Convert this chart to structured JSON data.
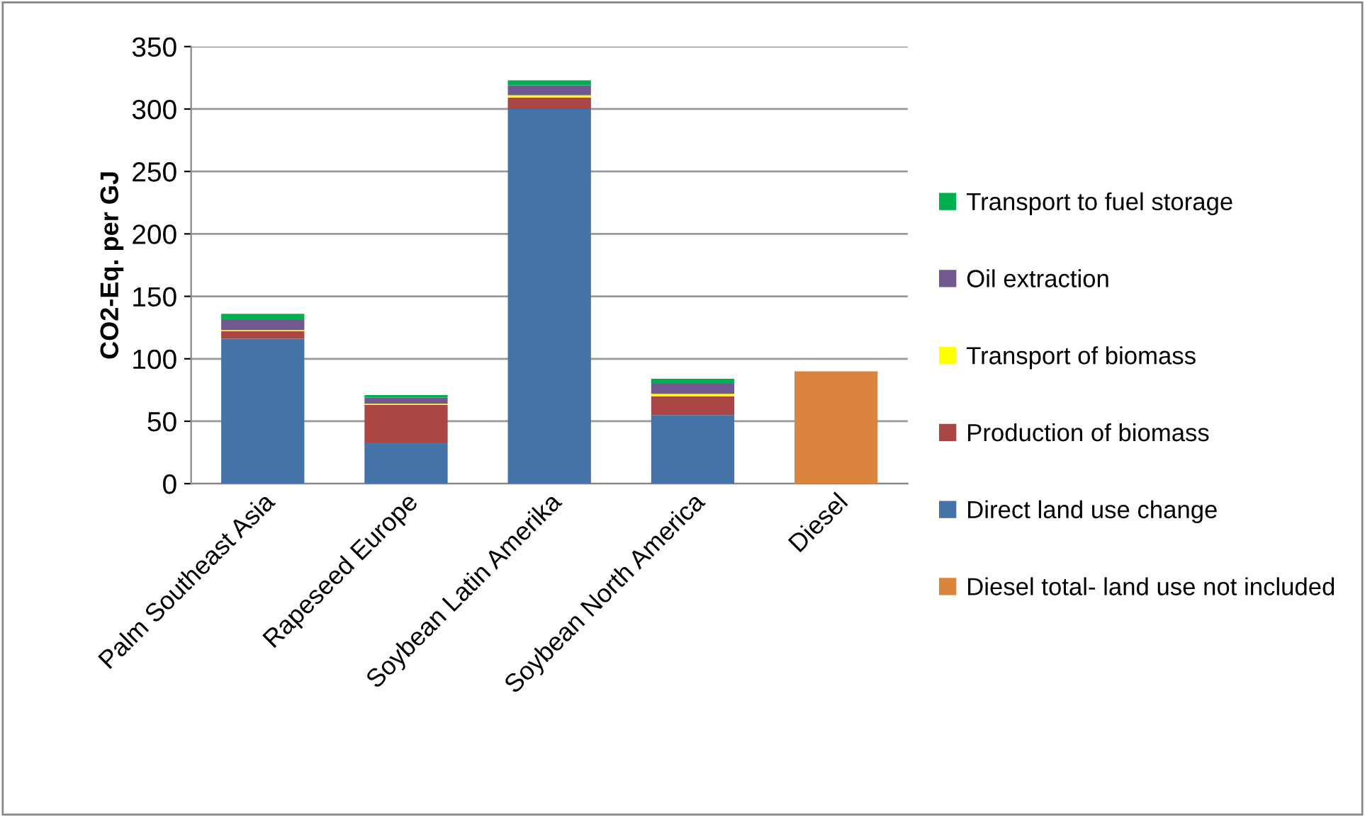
{
  "chart_data": {
    "type": "bar",
    "stacked": true,
    "ylabel": "CO2-Eq. per GJ",
    "categories": [
      "Palm Southeast Asia",
      "Rapeseed Europe",
      "Soybean Latin Amerika",
      "Soybean North America",
      "Diesel"
    ],
    "series": [
      {
        "name": "Diesel total- land use not included",
        "color": "#db843d",
        "values": [
          null,
          null,
          null,
          null,
          90
        ]
      },
      {
        "name": "Direct land use change",
        "color": "#4573a7",
        "values": [
          116,
          33,
          300,
          55,
          null
        ]
      },
      {
        "name": "Production of biomass",
        "color": "#aa4643",
        "values": [
          6,
          30,
          9,
          15,
          null
        ]
      },
      {
        "name": "Transport of biomass",
        "color": "#ffff00",
        "values": [
          1,
          1,
          2,
          2,
          null
        ]
      },
      {
        "name": "Oil extraction",
        "color": "#71588f",
        "values": [
          8,
          5,
          8,
          8,
          null
        ]
      },
      {
        "name": "Transport to fuel storage",
        "color": "#00b050",
        "values": [
          5,
          2,
          4,
          4,
          null
        ]
      }
    ],
    "ylim": [
      0,
      350
    ],
    "yticks": [
      0,
      50,
      100,
      150,
      200,
      250,
      300,
      350
    ],
    "grid": "y",
    "legend": "right"
  }
}
